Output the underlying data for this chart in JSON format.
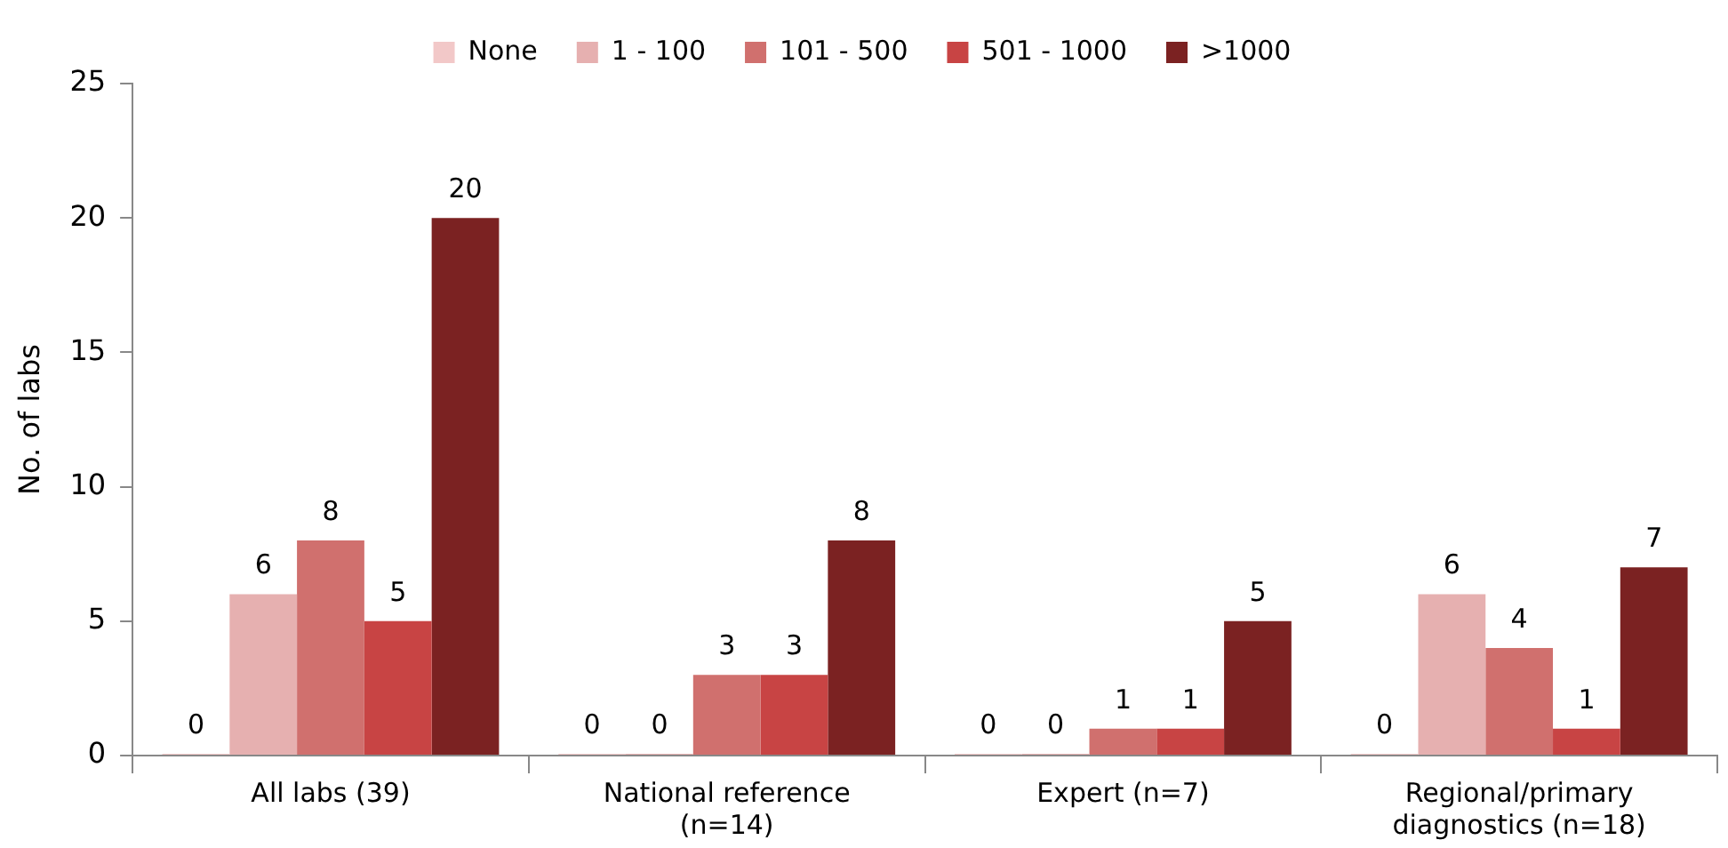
{
  "chart_data": {
    "type": "bar",
    "ylabel": "No. of labs",
    "categories": [
      "All labs (39)",
      "National reference (n=14)",
      "Expert (n=7)",
      "Regional/primary diagnostics (n=18)"
    ],
    "series": [
      {
        "name": "None",
        "color": "#f2c8c8",
        "values": [
          0,
          0,
          0,
          0
        ]
      },
      {
        "name": "1 - 100",
        "color": "#e6b0b0",
        "values": [
          6,
          0,
          0,
          6
        ]
      },
      {
        "name": "101 - 500",
        "color": "#d0706e",
        "values": [
          8,
          3,
          1,
          4
        ]
      },
      {
        "name": "501 - 1000",
        "color": "#c84444",
        "values": [
          5,
          3,
          1,
          1
        ]
      },
      {
        "name": ">1000",
        "color": "#7b2222",
        "values": [
          20,
          8,
          5,
          7
        ]
      }
    ],
    "ylim": [
      0,
      25
    ],
    "yticks": [
      0,
      5,
      10,
      15,
      20,
      25
    ],
    "grid": false,
    "legend": "top",
    "data_labels": true
  }
}
